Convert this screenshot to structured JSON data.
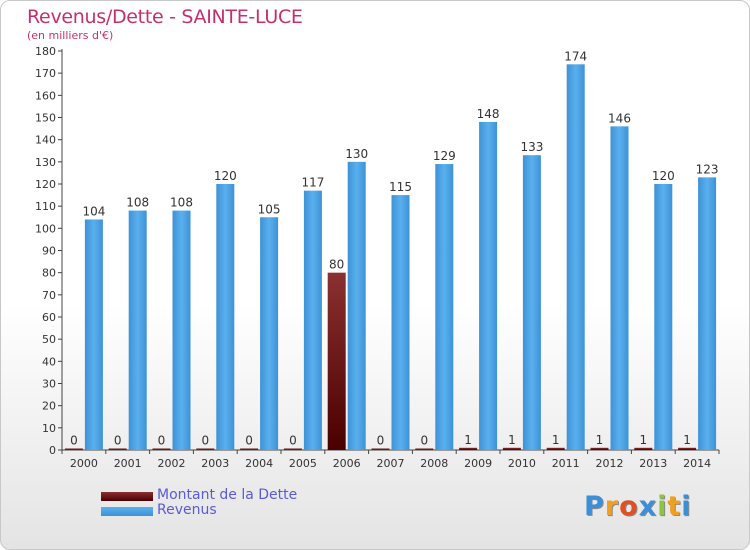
{
  "chart_data": {
    "type": "bar",
    "title": "Revenus/Dette - SAINTE-LUCE",
    "subtitle": "(en milliers d'€)",
    "categories": [
      "2000",
      "2001",
      "2002",
      "2003",
      "2004",
      "2005",
      "2006",
      "2007",
      "2008",
      "2009",
      "2010",
      "2011",
      "2012",
      "2013",
      "2014"
    ],
    "series": [
      {
        "name": "Montant de la Dette",
        "color": "#7a1a1a",
        "values": [
          0,
          0,
          0,
          0,
          0,
          0,
          80,
          0,
          0,
          1,
          1,
          1,
          1,
          1,
          1
        ]
      },
      {
        "name": "Revenus",
        "color": "#4aa3e6",
        "values": [
          104,
          108,
          108,
          120,
          105,
          117,
          130,
          115,
          129,
          148,
          133,
          174,
          146,
          120,
          123
        ]
      }
    ],
    "ylim": [
      0,
      180
    ],
    "yticks": [
      0,
      10,
      20,
      30,
      40,
      50,
      60,
      70,
      80,
      90,
      100,
      110,
      120,
      130,
      140,
      150,
      160,
      170,
      180
    ],
    "grid": false,
    "legend_position": "bottom-left"
  },
  "logo": {
    "letters": [
      "P",
      "r",
      "o",
      "x",
      "i",
      "t",
      "i"
    ],
    "colors": [
      "#3a8fd8",
      "#f0a020",
      "#e05020",
      "#3a8fd8",
      "#8cc63f",
      "#f0a020",
      "#3a8fd8"
    ]
  }
}
